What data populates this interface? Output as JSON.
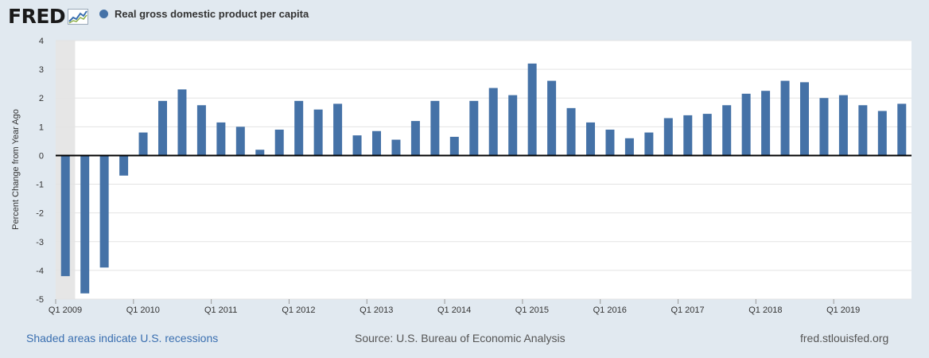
{
  "header": {
    "logo_text": "FRED",
    "legend_label": "Real gross domestic product per capita"
  },
  "colors": {
    "series": "#4572a7",
    "recession": "#e6e6e6",
    "background": "#e1e9f0",
    "plot": "#ffffff"
  },
  "footer": {
    "recession_note": "Shaded areas indicate U.S. recessions",
    "source": "Source: U.S. Bureau of Economic Analysis",
    "site": "fred.stlouisfed.org"
  },
  "chart_data": {
    "type": "bar",
    "title": "",
    "ylabel": "Percent Change from Year Ago",
    "xlabel": "",
    "ylim": [
      -5,
      4
    ],
    "yticks": [
      4,
      3,
      2,
      1,
      0,
      -1,
      -2,
      -3,
      -4,
      -5
    ],
    "grid": true,
    "legend_position": "top-left",
    "recession_shading": {
      "from": "2009-01-01",
      "to": "2009-06-01"
    },
    "x_tick_labels": [
      {
        "label": "Q1 2009",
        "quarter": "2009-01-01"
      },
      {
        "label": "Q1 2010",
        "quarter": "2010-01-01"
      },
      {
        "label": "Q1 2011",
        "quarter": "2011-01-01"
      },
      {
        "label": "Q1 2012",
        "quarter": "2012-01-01"
      },
      {
        "label": "Q1 2013",
        "quarter": "2013-01-01"
      },
      {
        "label": "Q1 2014",
        "quarter": "2014-01-01"
      },
      {
        "label": "Q1 2015",
        "quarter": "2015-01-01"
      },
      {
        "label": "Q1 2016",
        "quarter": "2016-01-01"
      },
      {
        "label": "Q1 2017",
        "quarter": "2017-01-01"
      },
      {
        "label": "Q1 2018",
        "quarter": "2018-01-01"
      },
      {
        "label": "Q1 2019",
        "quarter": "2019-01-01"
      }
    ],
    "series": [
      {
        "name": "Real gross domestic product per capita",
        "x": [
          "2009-01-01",
          "2009-04-01",
          "2009-07-01",
          "2009-10-01",
          "2010-01-01",
          "2010-04-01",
          "2010-07-01",
          "2010-10-01",
          "2011-01-01",
          "2011-04-01",
          "2011-07-01",
          "2011-10-01",
          "2012-01-01",
          "2012-04-01",
          "2012-07-01",
          "2012-10-01",
          "2013-01-01",
          "2013-04-01",
          "2013-07-01",
          "2013-10-01",
          "2014-01-01",
          "2014-04-01",
          "2014-07-01",
          "2014-10-01",
          "2015-01-01",
          "2015-04-01",
          "2015-07-01",
          "2015-10-01",
          "2016-01-01",
          "2016-04-01",
          "2016-07-01",
          "2016-10-01",
          "2017-01-01",
          "2017-04-01",
          "2017-07-01",
          "2017-10-01",
          "2018-01-01",
          "2018-04-01",
          "2018-07-01",
          "2018-10-01",
          "2019-01-01",
          "2019-04-01",
          "2019-07-01",
          "2019-10-01"
        ],
        "values": [
          -4.2,
          -4.8,
          -3.9,
          -0.7,
          0.8,
          1.9,
          2.3,
          1.75,
          1.15,
          1.0,
          0.2,
          0.9,
          1.9,
          1.6,
          1.8,
          0.7,
          0.85,
          0.55,
          1.2,
          1.9,
          0.65,
          1.9,
          2.35,
          2.1,
          3.2,
          2.6,
          1.65,
          1.15,
          0.9,
          0.6,
          0.8,
          1.3,
          1.4,
          1.45,
          1.75,
          2.15,
          2.25,
          2.6,
          2.55,
          2.0,
          2.1,
          1.75,
          1.55,
          1.8
        ]
      }
    ]
  }
}
